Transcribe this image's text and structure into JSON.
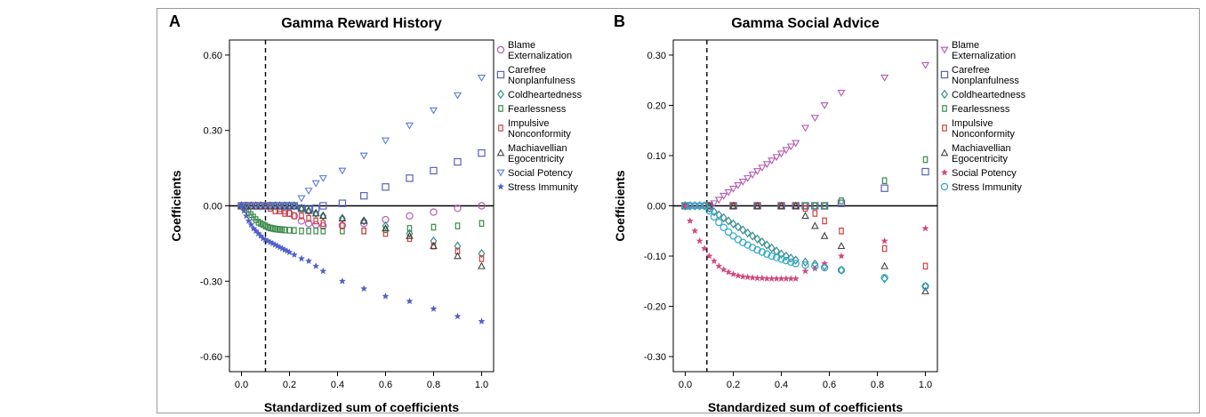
{
  "chart_data": [
    {
      "type": "scatter",
      "panel": "A",
      "title": "Gamma Reward History",
      "xlabel": "Standardized sum of coefficients",
      "ylabel": "Coefficients",
      "xlim": [
        -0.05,
        1.05
      ],
      "ylim": [
        -0.66,
        0.66
      ],
      "xticks": [
        "0.0",
        "0.2",
        "0.4",
        "0.6",
        "0.8",
        "1.0"
      ],
      "yticks": [
        "-0.60",
        "-0.30",
        "0.00",
        "0.30",
        "0.60"
      ],
      "vline_x": 0.1,
      "legend_position": "right",
      "series": [
        {
          "name": "Blame Externalization",
          "name_lines": [
            "Blame",
            "Externalization"
          ],
          "marker": "circle",
          "color": "#b55bb0",
          "x": [
            0.0,
            0.02,
            0.04,
            0.06,
            0.08,
            0.1,
            0.12,
            0.14,
            0.16,
            0.18,
            0.2,
            0.22,
            0.25,
            0.28,
            0.31,
            0.34,
            0.42,
            0.51,
            0.6,
            0.7,
            0.8,
            0.9,
            1.0
          ],
          "y": [
            0.0,
            0.0,
            0.0,
            0.0,
            0.0,
            0.0,
            0.0,
            0.0,
            -0.01,
            -0.02,
            -0.03,
            -0.04,
            -0.06,
            -0.07,
            -0.075,
            -0.08,
            -0.078,
            -0.07,
            -0.055,
            -0.04,
            -0.025,
            -0.01,
            0.0
          ]
        },
        {
          "name": "Carefree Nonplanfulness",
          "name_lines": [
            "Carefree",
            "Nonplanfulness"
          ],
          "marker": "square",
          "color": "#5b63b8",
          "x": [
            0.0,
            0.02,
            0.04,
            0.06,
            0.08,
            0.1,
            0.12,
            0.14,
            0.16,
            0.18,
            0.2,
            0.22,
            0.25,
            0.28,
            0.31,
            0.34,
            0.42,
            0.51,
            0.6,
            0.7,
            0.8,
            0.9,
            1.0
          ],
          "y": [
            0.0,
            0.0,
            0.0,
            0.0,
            0.0,
            0.0,
            0.0,
            0.0,
            0.0,
            0.0,
            0.0,
            0.0,
            -0.01,
            -0.015,
            -0.01,
            0.0,
            0.01,
            0.04,
            0.075,
            0.11,
            0.14,
            0.175,
            0.21
          ]
        },
        {
          "name": "Coldheartedness",
          "name_lines": [
            "Coldheartedness"
          ],
          "marker": "diamond",
          "color": "#3a8f8f",
          "x": [
            0.0,
            0.02,
            0.04,
            0.06,
            0.08,
            0.1,
            0.12,
            0.14,
            0.16,
            0.18,
            0.2,
            0.22,
            0.25,
            0.28,
            0.31,
            0.34,
            0.42,
            0.51,
            0.6,
            0.7,
            0.8,
            0.9,
            1.0
          ],
          "y": [
            0.0,
            0.0,
            0.0,
            0.0,
            0.0,
            0.0,
            0.0,
            0.0,
            0.0,
            0.0,
            0.0,
            0.0,
            -0.01,
            -0.02,
            -0.03,
            -0.04,
            -0.05,
            -0.06,
            -0.08,
            -0.11,
            -0.14,
            -0.16,
            -0.19
          ]
        },
        {
          "name": "Fearlessness",
          "name_lines": [
            "Fearlessness"
          ],
          "marker": "rect",
          "color": "#3a8a4a",
          "x": [
            0.0,
            0.01,
            0.02,
            0.03,
            0.04,
            0.05,
            0.06,
            0.07,
            0.08,
            0.09,
            0.1,
            0.11,
            0.12,
            0.13,
            0.14,
            0.15,
            0.16,
            0.17,
            0.18,
            0.2,
            0.22,
            0.25,
            0.28,
            0.31,
            0.34,
            0.42,
            0.51,
            0.6,
            0.7,
            0.8,
            0.9,
            1.0
          ],
          "y": [
            0.0,
            -0.005,
            -0.015,
            -0.025,
            -0.035,
            -0.045,
            -0.055,
            -0.065,
            -0.07,
            -0.075,
            -0.08,
            -0.085,
            -0.088,
            -0.09,
            -0.092,
            -0.093,
            -0.094,
            -0.095,
            -0.096,
            -0.097,
            -0.098,
            -0.1,
            -0.1,
            -0.1,
            -0.1,
            -0.1,
            -0.1,
            -0.095,
            -0.09,
            -0.085,
            -0.08,
            -0.07
          ]
        },
        {
          "name": "Impulsive Nonconformity",
          "name_lines": [
            "Impulsive",
            "Nonconformity"
          ],
          "marker": "rect",
          "color": "#d04040",
          "x": [
            0.0,
            0.02,
            0.04,
            0.06,
            0.08,
            0.1,
            0.12,
            0.14,
            0.16,
            0.18,
            0.2,
            0.22,
            0.25,
            0.28,
            0.31,
            0.34,
            0.42,
            0.51,
            0.6,
            0.7,
            0.8,
            0.9,
            1.0
          ],
          "y": [
            0.0,
            0.0,
            0.0,
            0.0,
            0.0,
            0.0,
            -0.01,
            -0.02,
            -0.02,
            -0.03,
            -0.03,
            -0.04,
            -0.04,
            -0.05,
            -0.06,
            -0.07,
            -0.08,
            -0.1,
            -0.11,
            -0.13,
            -0.16,
            -0.18,
            -0.21
          ]
        },
        {
          "name": "Machiavellian Egocentricity",
          "name_lines": [
            "Machiavellian",
            "Egocentricity"
          ],
          "marker": "triangle",
          "color": "#444444",
          "x": [
            0.0,
            0.02,
            0.04,
            0.06,
            0.08,
            0.1,
            0.12,
            0.14,
            0.16,
            0.18,
            0.2,
            0.22,
            0.25,
            0.28,
            0.31,
            0.34,
            0.42,
            0.51,
            0.6,
            0.7,
            0.8,
            0.9,
            1.0
          ],
          "y": [
            0.0,
            0.0,
            0.0,
            0.0,
            0.0,
            0.0,
            0.0,
            0.0,
            0.0,
            0.0,
            0.0,
            0.0,
            -0.01,
            -0.02,
            -0.03,
            -0.04,
            -0.05,
            -0.06,
            -0.09,
            -0.12,
            -0.16,
            -0.2,
            -0.24
          ]
        },
        {
          "name": "Social Potency",
          "name_lines": [
            "Social Potency"
          ],
          "marker": "tri-down",
          "color": "#5b7bd8",
          "x": [
            0.0,
            0.02,
            0.04,
            0.06,
            0.08,
            0.1,
            0.12,
            0.14,
            0.16,
            0.18,
            0.2,
            0.22,
            0.25,
            0.28,
            0.31,
            0.34,
            0.42,
            0.51,
            0.6,
            0.7,
            0.8,
            0.9,
            1.0
          ],
          "y": [
            0.0,
            0.0,
            0.0,
            0.0,
            0.0,
            0.0,
            0.0,
            0.0,
            0.0,
            0.0,
            0.0,
            0.0,
            0.03,
            0.06,
            0.09,
            0.11,
            0.14,
            0.2,
            0.26,
            0.32,
            0.38,
            0.44,
            0.51
          ]
        },
        {
          "name": "Stress Immunity",
          "name_lines": [
            "Stress Immunity"
          ],
          "marker": "star",
          "color": "#5060c8",
          "x": [
            0.0,
            0.01,
            0.02,
            0.03,
            0.04,
            0.05,
            0.06,
            0.07,
            0.08,
            0.09,
            0.1,
            0.11,
            0.12,
            0.13,
            0.14,
            0.15,
            0.16,
            0.17,
            0.18,
            0.19,
            0.2,
            0.22,
            0.25,
            0.28,
            0.31,
            0.34,
            0.42,
            0.51,
            0.6,
            0.7,
            0.8,
            0.9,
            1.0
          ],
          "y": [
            0.0,
            -0.02,
            -0.04,
            -0.06,
            -0.075,
            -0.09,
            -0.1,
            -0.11,
            -0.12,
            -0.13,
            -0.135,
            -0.14,
            -0.145,
            -0.15,
            -0.155,
            -0.16,
            -0.165,
            -0.17,
            -0.175,
            -0.18,
            -0.185,
            -0.195,
            -0.21,
            -0.22,
            -0.24,
            -0.26,
            -0.3,
            -0.33,
            -0.36,
            -0.38,
            -0.41,
            -0.44,
            -0.46
          ]
        }
      ]
    },
    {
      "type": "scatter",
      "panel": "B",
      "title": "Gamma Social Advice",
      "xlabel": "Standardized sum of coefficients",
      "ylabel": "Coefficients",
      "xlim": [
        -0.05,
        1.05
      ],
      "ylim": [
        -0.33,
        0.33
      ],
      "xticks": [
        "0.0",
        "0.2",
        "0.4",
        "0.6",
        "0.8",
        "1.0"
      ],
      "yticks": [
        "-0.30",
        "-0.20",
        "-0.10",
        "0.00",
        "0.10",
        "0.20",
        "0.30"
      ],
      "vline_x": 0.09,
      "legend_position": "right",
      "series": [
        {
          "name": "Blame Externalization",
          "name_lines": [
            "Blame",
            "Externalization"
          ],
          "marker": "tri-down",
          "color": "#b55bb0",
          "x": [
            0.0,
            0.02,
            0.04,
            0.06,
            0.08,
            0.1,
            0.12,
            0.14,
            0.16,
            0.18,
            0.2,
            0.22,
            0.24,
            0.26,
            0.28,
            0.3,
            0.32,
            0.34,
            0.36,
            0.38,
            0.4,
            0.42,
            0.44,
            0.46,
            0.5,
            0.54,
            0.58,
            0.65,
            0.83,
            1.0
          ],
          "y": [
            0.0,
            0.0,
            0.0,
            0.0,
            0.0,
            0.0,
            0.005,
            0.012,
            0.02,
            0.027,
            0.034,
            0.041,
            0.048,
            0.055,
            0.062,
            0.069,
            0.076,
            0.083,
            0.09,
            0.097,
            0.104,
            0.111,
            0.118,
            0.125,
            0.155,
            0.175,
            0.2,
            0.225,
            0.255,
            0.28
          ]
        },
        {
          "name": "Carefree Nonplanfulness",
          "name_lines": [
            "Carefree",
            "Nonplanfulness"
          ],
          "marker": "square",
          "color": "#5b63b8",
          "x": [
            0.0,
            0.1,
            0.2,
            0.3,
            0.4,
            0.46,
            0.5,
            0.54,
            0.58,
            0.65,
            0.83,
            1.0
          ],
          "y": [
            0.0,
            0.0,
            0.0,
            0.0,
            0.0,
            0.0,
            0.0,
            0.0,
            0.0,
            0.005,
            0.035,
            0.068
          ]
        },
        {
          "name": "Coldheartedness",
          "name_lines": [
            "Coldheartedness"
          ],
          "marker": "diamond",
          "color": "#3a8f8f",
          "x": [
            0.0,
            0.02,
            0.04,
            0.06,
            0.08,
            0.1,
            0.12,
            0.14,
            0.16,
            0.18,
            0.2,
            0.22,
            0.24,
            0.26,
            0.28,
            0.3,
            0.32,
            0.34,
            0.36,
            0.38,
            0.4,
            0.42,
            0.44,
            0.46,
            0.5,
            0.54,
            0.58,
            0.65,
            0.83,
            1.0
          ],
          "y": [
            0.0,
            0.0,
            0.0,
            0.0,
            0.0,
            -0.005,
            -0.012,
            -0.018,
            -0.024,
            -0.03,
            -0.036,
            -0.042,
            -0.048,
            -0.054,
            -0.06,
            -0.066,
            -0.072,
            -0.078,
            -0.084,
            -0.09,
            -0.096,
            -0.1,
            -0.104,
            -0.108,
            -0.112,
            -0.116,
            -0.12,
            -0.128,
            -0.145,
            -0.16
          ]
        },
        {
          "name": "Fearlessness",
          "name_lines": [
            "Fearlessness"
          ],
          "marker": "rect",
          "color": "#3a8a4a",
          "x": [
            0.0,
            0.1,
            0.2,
            0.3,
            0.4,
            0.46,
            0.5,
            0.54,
            0.58,
            0.65,
            0.83,
            1.0
          ],
          "y": [
            0.0,
            0.0,
            0.0,
            0.0,
            0.0,
            0.0,
            0.0,
            0.0,
            0.0,
            0.01,
            0.05,
            0.092
          ]
        },
        {
          "name": "Impulsive Nonconformity",
          "name_lines": [
            "Impulsive",
            "Nonconformity"
          ],
          "marker": "rect",
          "color": "#d04040",
          "x": [
            0.0,
            0.1,
            0.2,
            0.3,
            0.4,
            0.46,
            0.5,
            0.54,
            0.58,
            0.65,
            0.83,
            1.0
          ],
          "y": [
            0.0,
            0.0,
            0.0,
            0.0,
            0.0,
            0.0,
            -0.005,
            -0.015,
            -0.03,
            -0.05,
            -0.085,
            -0.12
          ]
        },
        {
          "name": "Machiavellian Egocentricity",
          "name_lines": [
            "Machiavellian",
            "Egocentricity"
          ],
          "marker": "triangle",
          "color": "#444444",
          "x": [
            0.0,
            0.1,
            0.2,
            0.3,
            0.4,
            0.46,
            0.5,
            0.54,
            0.58,
            0.65,
            0.83,
            1.0
          ],
          "y": [
            0.0,
            0.0,
            0.0,
            0.0,
            0.0,
            0.0,
            -0.02,
            -0.04,
            -0.06,
            -0.08,
            -0.12,
            -0.17
          ]
        },
        {
          "name": "Social Potency",
          "name_lines": [
            "Social Potency"
          ],
          "marker": "star",
          "color": "#d04880",
          "x": [
            0.0,
            0.02,
            0.04,
            0.06,
            0.08,
            0.1,
            0.12,
            0.14,
            0.16,
            0.18,
            0.2,
            0.22,
            0.24,
            0.26,
            0.28,
            0.3,
            0.32,
            0.34,
            0.36,
            0.38,
            0.4,
            0.42,
            0.44,
            0.46,
            0.5,
            0.54,
            0.58,
            0.65,
            0.83,
            1.0
          ],
          "y": [
            0.0,
            -0.03,
            -0.05,
            -0.07,
            -0.085,
            -0.1,
            -0.11,
            -0.12,
            -0.127,
            -0.132,
            -0.136,
            -0.139,
            -0.141,
            -0.142,
            -0.143,
            -0.144,
            -0.144,
            -0.145,
            -0.145,
            -0.145,
            -0.145,
            -0.145,
            -0.145,
            -0.145,
            -0.13,
            -0.125,
            -0.115,
            -0.1,
            -0.07,
            -0.045
          ]
        },
        {
          "name": "Stress Immunity",
          "name_lines": [
            "Stress Immunity"
          ],
          "marker": "circle",
          "color": "#30a8c8",
          "x": [
            0.0,
            0.02,
            0.04,
            0.06,
            0.08,
            0.1,
            0.12,
            0.14,
            0.16,
            0.18,
            0.2,
            0.22,
            0.24,
            0.26,
            0.28,
            0.3,
            0.32,
            0.34,
            0.36,
            0.38,
            0.4,
            0.42,
            0.44,
            0.46,
            0.5,
            0.54,
            0.58,
            0.65,
            0.83,
            1.0
          ],
          "y": [
            0.0,
            0.0,
            0.0,
            0.0,
            0.0,
            -0.01,
            -0.022,
            -0.033,
            -0.043,
            -0.052,
            -0.06,
            -0.067,
            -0.073,
            -0.078,
            -0.083,
            -0.088,
            -0.092,
            -0.096,
            -0.1,
            -0.103,
            -0.106,
            -0.109,
            -0.112,
            -0.115,
            -0.118,
            -0.12,
            -0.123,
            -0.128,
            -0.143,
            -0.16
          ]
        }
      ]
    }
  ]
}
